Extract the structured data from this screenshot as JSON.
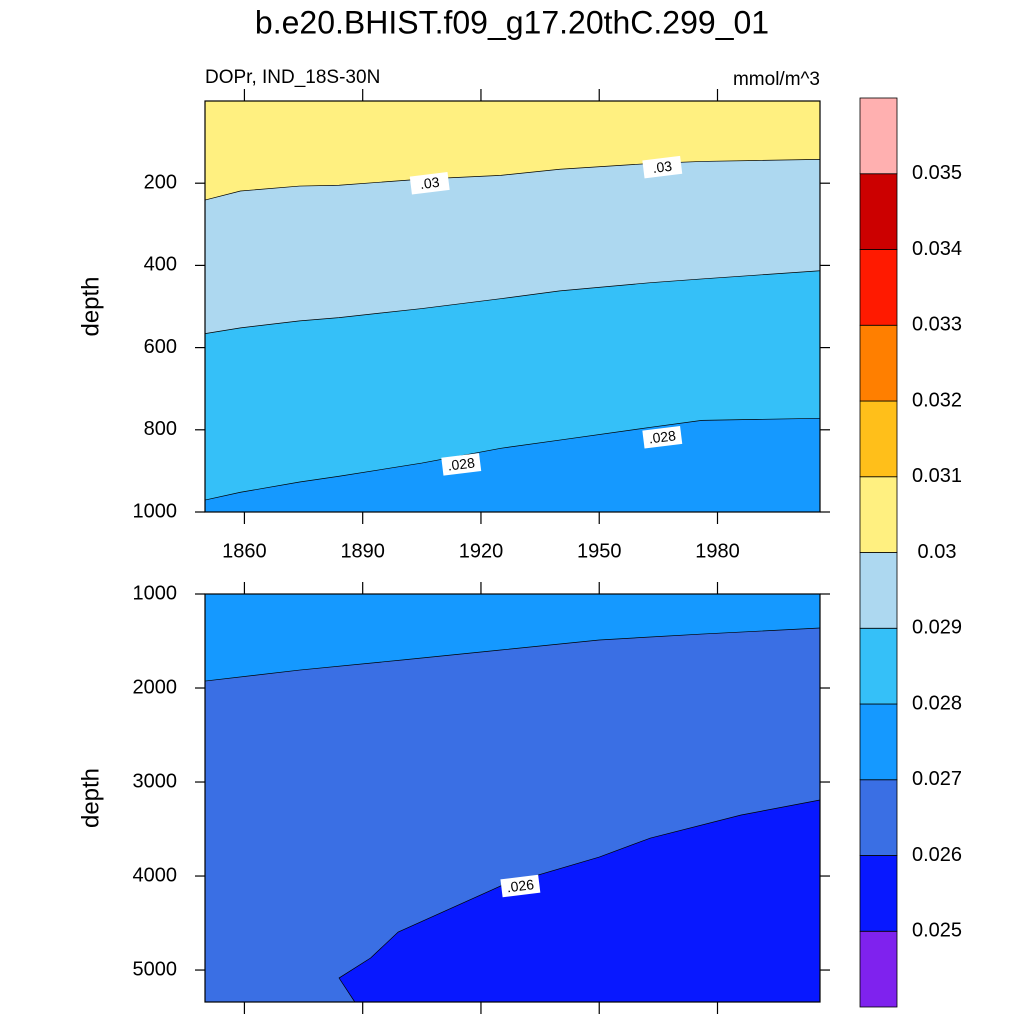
{
  "title": "b.e20.BHIST.f09_g17.20thC.299_01",
  "colorbar": {
    "levels": [
      0.025,
      0.026,
      0.027,
      0.028,
      0.029,
      0.03,
      0.031,
      0.032,
      0.033,
      0.034,
      0.035
    ],
    "colors": [
      "#7f22ee",
      "#0818ff",
      "#3a6fe4",
      "#1599ff",
      "#35c0f8",
      "#add8f0",
      "#fff080",
      "#ffbf1a",
      "#ff7f00",
      "#ff1a00",
      "#cc0000",
      "#ffb0b0"
    ]
  },
  "chart_data": [
    {
      "type": "contour",
      "subtitle_left": "DOPr, IND_18S-30N",
      "subtitle_right": "mmol/m^3",
      "ylabel": "depth",
      "xlim": [
        1850,
        2006
      ],
      "ylim": [
        0,
        1000
      ],
      "xticks": [
        1860,
        1890,
        1920,
        1950,
        1980
      ],
      "yticks": [
        200,
        400,
        600,
        800,
        1000
      ],
      "show_xtick_labels": true,
      "contours": [
        {
          "level": 0.03,
          "level_label": ".03",
          "x": [
            1850,
            1859,
            1874,
            1884,
            1905,
            1925,
            1940,
            1963,
            1976,
            2006
          ],
          "depth": [
            241,
            219,
            207,
            205,
            190,
            181,
            166,
            152,
            147,
            142
          ],
          "label_positions": [
            {
              "x": 1907,
              "depth": 200
            },
            {
              "x": 1966,
              "depth": 161
            }
          ]
        },
        {
          "level": 0.029,
          "x": [
            1850,
            1859,
            1874,
            1884,
            1905,
            1925,
            1940,
            1963,
            1976,
            2006
          ],
          "depth": [
            566,
            552,
            535,
            527,
            505,
            481,
            462,
            442,
            433,
            413
          ]
        },
        {
          "level": 0.028,
          "level_label": ".028",
          "x": [
            1850,
            1859,
            1874,
            1884,
            1905,
            1925,
            1940,
            1963,
            1976,
            2006
          ],
          "depth": [
            971,
            952,
            927,
            913,
            881,
            845,
            825,
            794,
            777,
            772
          ],
          "label_positions": [
            {
              "x": 1915,
              "depth": 884
            },
            {
              "x": 1966,
              "depth": 818
            }
          ]
        }
      ]
    },
    {
      "type": "contour",
      "ylabel": "depth",
      "xlim": [
        1850,
        2006
      ],
      "ylim": [
        1000,
        5340
      ],
      "xticks": [
        1860,
        1890,
        1920,
        1950,
        1980
      ],
      "yticks": [
        1000,
        2000,
        3000,
        4000,
        5000
      ],
      "show_xtick_labels": false,
      "contours": [
        {
          "level": 0.027,
          "x": [
            1850,
            1874,
            1900,
            1925,
            1950,
            1976,
            2006
          ],
          "depth": [
            1926,
            1809,
            1702,
            1596,
            1489,
            1426,
            1362
          ]
        },
        {
          "level": 0.026,
          "level_label": ".026",
          "x": [
            1888,
            1884,
            1892,
            1899,
            1925,
            1950,
            1963,
            1986,
            2006
          ],
          "depth": [
            5340,
            5085,
            4872,
            4596,
            4106,
            3798,
            3596,
            3351,
            3191
          ],
          "label_positions": [
            {
              "x": 1930,
              "depth": 4106
            }
          ]
        }
      ]
    }
  ]
}
